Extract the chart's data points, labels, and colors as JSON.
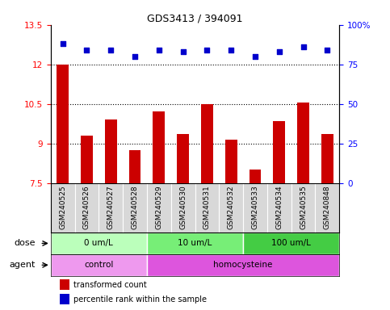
{
  "title": "GDS3413 / 394091",
  "samples": [
    "GSM240525",
    "GSM240526",
    "GSM240527",
    "GSM240528",
    "GSM240529",
    "GSM240530",
    "GSM240531",
    "GSM240532",
    "GSM240533",
    "GSM240534",
    "GSM240535",
    "GSM240848"
  ],
  "bar_values": [
    12.0,
    9.3,
    9.9,
    8.75,
    10.2,
    9.35,
    10.5,
    9.15,
    8.0,
    9.85,
    10.55,
    9.35
  ],
  "dot_values": [
    88,
    84,
    84,
    80,
    84,
    83,
    84,
    84,
    80,
    83,
    86,
    84
  ],
  "ylim_left": [
    7.5,
    13.5
  ],
  "ylim_right": [
    0,
    100
  ],
  "yticks_left": [
    7.5,
    9.0,
    10.5,
    12.0,
    13.5
  ],
  "yticks_right": [
    0,
    25,
    50,
    75,
    100
  ],
  "ytick_labels_left": [
    "7.5",
    "9",
    "10.5",
    "12",
    "13.5"
  ],
  "ytick_labels_right": [
    "0",
    "25",
    "50",
    "75",
    "100%"
  ],
  "hlines": [
    9.0,
    10.5,
    12.0
  ],
  "bar_color": "#cc0000",
  "dot_color": "#0000cc",
  "dose_groups": [
    {
      "label": "0 um/L",
      "start": 0,
      "end": 4,
      "color": "#bbffbb"
    },
    {
      "label": "10 um/L",
      "start": 4,
      "end": 8,
      "color": "#77ee77"
    },
    {
      "label": "100 um/L",
      "start": 8,
      "end": 12,
      "color": "#44cc44"
    }
  ],
  "agent_groups": [
    {
      "label": "control",
      "start": 0,
      "end": 4,
      "color": "#ee99ee"
    },
    {
      "label": "homocysteine",
      "start": 4,
      "end": 12,
      "color": "#dd55dd"
    }
  ],
  "dose_label": "dose",
  "agent_label": "agent",
  "legend_bar_label": "transformed count",
  "legend_dot_label": "percentile rank within the sample",
  "bg_color": "#d8d8d8",
  "plot_bg": "#ffffff",
  "xtick_bg": "#cccccc"
}
